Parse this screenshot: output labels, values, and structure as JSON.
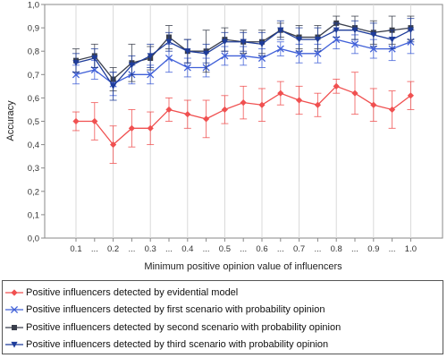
{
  "chart_data": {
    "type": "line",
    "xlabel": "Minimum positive opinion value of influencers",
    "ylabel": "Accuracy",
    "ylim": [
      0,
      1
    ],
    "yticks": [
      "0,0",
      "0,1",
      "0,2",
      "0,3",
      "0,4",
      "0,5",
      "0,6",
      "0,7",
      "0,8",
      "0,9",
      "1,0"
    ],
    "categories": [
      "0.1",
      "...",
      "0.2",
      "...",
      "0.3",
      "...",
      "0.4",
      "...",
      "0.5",
      "...",
      "0.6",
      "...",
      "0.7",
      "...",
      "0.8",
      "...",
      "0.9",
      "...",
      "1.0"
    ],
    "grid": "vertical",
    "legend_position": "bottom",
    "series": [
      {
        "name": "Positive influencers detected by evidential model",
        "color": "#f05050",
        "marker": "diamond",
        "values": [
          0.5,
          0.5,
          0.4,
          0.47,
          0.47,
          0.55,
          0.53,
          0.51,
          0.55,
          0.58,
          0.57,
          0.62,
          0.59,
          0.57,
          0.65,
          0.62,
          0.57,
          0.55,
          0.61
        ],
        "errors": [
          0.04,
          0.08,
          0.08,
          0.08,
          0.07,
          0.05,
          0.06,
          0.08,
          0.06,
          0.07,
          0.07,
          0.05,
          0.06,
          0.05,
          0.03,
          0.09,
          0.07,
          0.08,
          0.06
        ]
      },
      {
        "name": "Positive influencers detected by first scenario with probability opinion",
        "color": "#4060d8",
        "marker": "x",
        "values": [
          0.7,
          0.72,
          0.66,
          0.7,
          0.7,
          0.77,
          0.73,
          0.73,
          0.78,
          0.78,
          0.77,
          0.81,
          0.79,
          0.79,
          0.85,
          0.83,
          0.81,
          0.81,
          0.84
        ],
        "errors": [
          0.04,
          0.04,
          0.05,
          0.04,
          0.04,
          0.06,
          0.04,
          0.04,
          0.04,
          0.04,
          0.04,
          0.03,
          0.04,
          0.04,
          0.04,
          0.04,
          0.04,
          0.05,
          0.05
        ]
      },
      {
        "name": "Positive influencers detected by second scenario with probability opinion",
        "color": "#3a3f4c",
        "marker": "square",
        "values": [
          0.76,
          0.78,
          0.68,
          0.75,
          0.77,
          0.86,
          0.8,
          0.8,
          0.85,
          0.84,
          0.84,
          0.89,
          0.86,
          0.86,
          0.92,
          0.9,
          0.88,
          0.89,
          0.9
        ],
        "errors": [
          0.05,
          0.05,
          0.05,
          0.08,
          0.05,
          0.05,
          0.05,
          0.09,
          0.05,
          0.05,
          0.05,
          0.03,
          0.05,
          0.05,
          0.03,
          0.05,
          0.05,
          0.06,
          0.05
        ]
      },
      {
        "name": "Positive influencers detected by third scenario with probability opinion",
        "color": "#1e3c9a",
        "marker": "triangle-down",
        "values": [
          0.75,
          0.77,
          0.65,
          0.74,
          0.78,
          0.84,
          0.8,
          0.79,
          0.84,
          0.84,
          0.83,
          0.89,
          0.85,
          0.85,
          0.89,
          0.89,
          0.87,
          0.85,
          0.89
        ],
        "errors": [
          0.04,
          0.04,
          0.06,
          0.04,
          0.05,
          0.04,
          0.05,
          0.04,
          0.04,
          0.04,
          0.05,
          0.04,
          0.05,
          0.05,
          0.03,
          0.04,
          0.05,
          0.04,
          0.05
        ]
      }
    ]
  }
}
